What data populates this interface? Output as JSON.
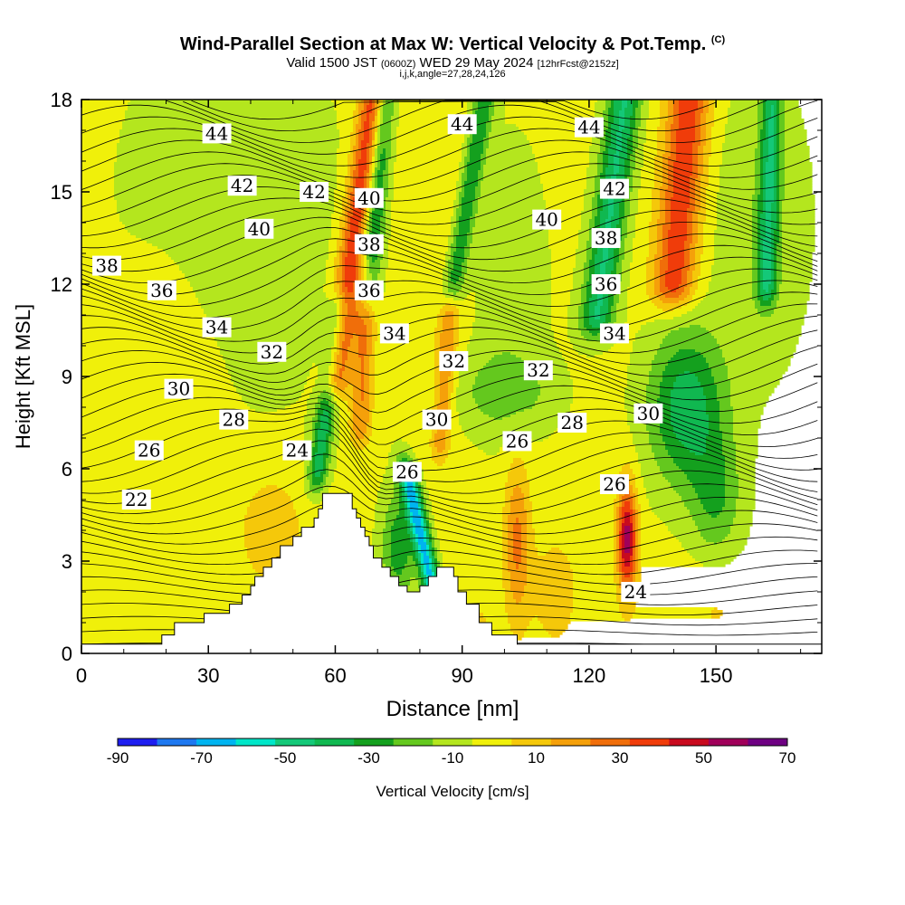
{
  "header": {
    "title": "Wind-Parallel Section at Max W: Vertical Velocity & Pot.Temp.",
    "title_mark": "(C)",
    "valid_prefix": "Valid 1500 JST",
    "valid_utc": "(0600Z)",
    "valid_date": "WED 29 May 2024",
    "forecast": "[12hrFcst@2152z]",
    "params": "i,j,k,angle=27,28,24,126"
  },
  "chart_data": {
    "type": "heatmap",
    "xlabel": "Distance [nm]",
    "ylabel": "Height [Kft MSL]",
    "xlim": [
      0,
      175
    ],
    "ylim": [
      0,
      18
    ],
    "x_ticks": [
      0,
      30,
      60,
      90,
      120,
      150
    ],
    "y_ticks": [
      0,
      3,
      6,
      9,
      12,
      15,
      18
    ],
    "terrain_profile": [
      [
        0,
        0.3
      ],
      [
        19,
        0.3
      ],
      [
        19,
        0.6
      ],
      [
        22,
        0.6
      ],
      [
        22,
        1.0
      ],
      [
        29,
        1.0
      ],
      [
        29,
        1.3
      ],
      [
        35,
        1.3
      ],
      [
        35,
        1.6
      ],
      [
        38,
        1.6
      ],
      [
        38,
        1.9
      ],
      [
        40,
        1.9
      ],
      [
        40,
        2.2
      ],
      [
        41,
        2.2
      ],
      [
        41,
        2.5
      ],
      [
        43,
        2.5
      ],
      [
        43,
        2.8
      ],
      [
        45,
        2.8
      ],
      [
        45,
        3.1
      ],
      [
        47,
        3.1
      ],
      [
        47,
        3.5
      ],
      [
        50,
        3.5
      ],
      [
        50,
        3.8
      ],
      [
        52,
        3.8
      ],
      [
        52,
        4.1
      ],
      [
        55,
        4.1
      ],
      [
        55,
        4.4
      ],
      [
        56,
        4.4
      ],
      [
        56,
        4.7
      ],
      [
        57,
        4.7
      ],
      [
        57,
        5.2
      ],
      [
        64,
        5.2
      ],
      [
        64,
        4.7
      ],
      [
        65,
        4.7
      ],
      [
        65,
        4.4
      ],
      [
        66,
        4.4
      ],
      [
        66,
        4.1
      ],
      [
        67,
        4.1
      ],
      [
        67,
        3.8
      ],
      [
        68,
        3.8
      ],
      [
        68,
        3.5
      ],
      [
        69,
        3.5
      ],
      [
        69,
        3.1
      ],
      [
        71,
        3.1
      ],
      [
        71,
        2.8
      ],
      [
        73,
        2.8
      ],
      [
        73,
        2.5
      ],
      [
        75,
        2.5
      ],
      [
        75,
        2.2
      ],
      [
        77,
        2.2
      ],
      [
        77,
        2.0
      ],
      [
        80,
        2.0
      ],
      [
        80,
        2.2
      ],
      [
        82,
        2.2
      ],
      [
        82,
        2.5
      ],
      [
        84,
        2.5
      ],
      [
        84,
        2.8
      ],
      [
        88,
        2.8
      ],
      [
        88,
        2.5
      ],
      [
        89,
        2.5
      ],
      [
        89,
        2.0
      ],
      [
        91,
        2.0
      ],
      [
        91,
        1.6
      ],
      [
        94,
        1.6
      ],
      [
        94,
        1.0
      ],
      [
        97,
        1.0
      ],
      [
        97,
        0.6
      ],
      [
        103,
        0.6
      ],
      [
        103,
        0.3
      ],
      [
        175,
        0.3
      ]
    ],
    "colorbar": {
      "label": "Vertical Velocity [cm/s]",
      "tick_labels": [
        "-90",
        "-70",
        "-50",
        "-30",
        "-10",
        "10",
        "30",
        "50",
        "70"
      ],
      "boundaries": [
        -90,
        -80,
        -70,
        -60,
        -50,
        -40,
        -30,
        -20,
        -10,
        0,
        10,
        20,
        30,
        40,
        50,
        60,
        70
      ],
      "colors": [
        "#1e1ef0",
        "#1e78f0",
        "#00b4f0",
        "#00e6c8",
        "#14c878",
        "#10b850",
        "#14a01e",
        "#64c81e",
        "#b4e61e",
        "#f0f00a",
        "#f5c80a",
        "#f5a00a",
        "#f06e0a",
        "#f03c0a",
        "#c80a1e",
        "#a0005a",
        "#6e0082"
      ]
    },
    "pot_temp_contour_labels": [
      {
        "label": "44",
        "x": 32,
        "y": 16.9
      },
      {
        "label": "44",
        "x": 90,
        "y": 17.2
      },
      {
        "label": "44",
        "x": 120,
        "y": 17.1
      },
      {
        "label": "42",
        "x": 38,
        "y": 15.2
      },
      {
        "label": "42",
        "x": 55,
        "y": 15.0
      },
      {
        "label": "42",
        "x": 126,
        "y": 15.1
      },
      {
        "label": "40",
        "x": 42,
        "y": 13.8
      },
      {
        "label": "40",
        "x": 68,
        "y": 14.8
      },
      {
        "label": "40",
        "x": 110,
        "y": 14.1
      },
      {
        "label": "38",
        "x": 6,
        "y": 12.6
      },
      {
        "label": "38",
        "x": 68,
        "y": 13.3
      },
      {
        "label": "38",
        "x": 124,
        "y": 13.5
      },
      {
        "label": "36",
        "x": 19,
        "y": 11.8
      },
      {
        "label": "36",
        "x": 68,
        "y": 11.8
      },
      {
        "label": "36",
        "x": 124,
        "y": 12.0
      },
      {
        "label": "34",
        "x": 32,
        "y": 10.6
      },
      {
        "label": "34",
        "x": 74,
        "y": 10.4
      },
      {
        "label": "34",
        "x": 126,
        "y": 10.4
      },
      {
        "label": "32",
        "x": 45,
        "y": 9.8
      },
      {
        "label": "32",
        "x": 88,
        "y": 9.5
      },
      {
        "label": "32",
        "x": 108,
        "y": 9.2
      },
      {
        "label": "30",
        "x": 23,
        "y": 8.6
      },
      {
        "label": "30",
        "x": 84,
        "y": 7.6
      },
      {
        "label": "30",
        "x": 134,
        "y": 7.8
      },
      {
        "label": "28",
        "x": 36,
        "y": 7.6
      },
      {
        "label": "28",
        "x": 116,
        "y": 7.5
      },
      {
        "label": "26",
        "x": 16,
        "y": 6.6
      },
      {
        "label": "26",
        "x": 77,
        "y": 5.9
      },
      {
        "label": "26",
        "x": 103,
        "y": 6.9
      },
      {
        "label": "26",
        "x": 126,
        "y": 5.5
      },
      {
        "label": "24",
        "x": 51,
        "y": 6.6
      },
      {
        "label": "24",
        "x": 131,
        "y": 2.0
      },
      {
        "label": "22",
        "x": 13,
        "y": 5.0
      }
    ]
  }
}
